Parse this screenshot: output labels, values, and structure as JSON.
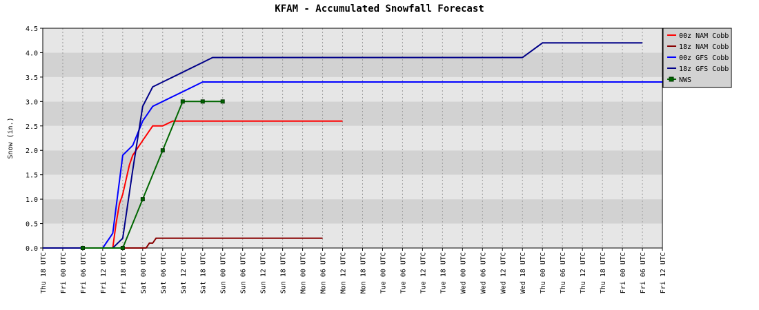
{
  "chart_data": {
    "type": "line",
    "title": "KFAM - Accumulated Snowfall Forecast",
    "xlabel": "",
    "ylabel": "Snow (in.)",
    "ylim": [
      0,
      4.5
    ],
    "yticks": [
      "0.0",
      "0.5",
      "1.0",
      "1.5",
      "2.0",
      "2.5",
      "3.0",
      "3.5",
      "4.0",
      "4.5"
    ],
    "xticks": [
      "Thu 18 UTC",
      "Fri 00 UTC",
      "Fri 06 UTC",
      "Fri 12 UTC",
      "Fri 18 UTC",
      "Sat 00 UTC",
      "Sat 06 UTC",
      "Sat 12 UTC",
      "Sat 18 UTC",
      "Sun 00 UTC",
      "Sun 06 UTC",
      "Sun 12 UTC",
      "Sun 18 UTC",
      "Mon 00 UTC",
      "Mon 06 UTC",
      "Mon 12 UTC",
      "Mon 18 UTC",
      "Tue 00 UTC",
      "Tue 06 UTC",
      "Tue 12 UTC",
      "Tue 18 UTC",
      "Wed 00 UTC",
      "Wed 06 UTC",
      "Wed 12 UTC",
      "Wed 18 UTC",
      "Thu 00 UTC",
      "Thu 06 UTC",
      "Thu 12 UTC",
      "Thu 18 UTC",
      "Fri 00 UTC",
      "Fri 06 UTC",
      "Fri 12 UTC"
    ],
    "grid": true,
    "legend": "top-right",
    "series": [
      {
        "name": "00z NAM Cobb",
        "color": "#ff0000",
        "markers": false,
        "points": [
          [
            "Fri 12 UTC",
            0
          ],
          [
            "Fri 15 UTC",
            0
          ],
          [
            "Fri 16 UTC",
            0.5
          ],
          [
            "Fri 17 UTC",
            0.9
          ],
          [
            "Fri 18 UTC",
            1.1
          ],
          [
            "Fri 19 UTC",
            1.4
          ],
          [
            "Fri 20 UTC",
            1.7
          ],
          [
            "Fri 21 UTC",
            1.9
          ],
          [
            "Sat 00 UTC",
            2.2
          ],
          [
            "Sat 03 UTC",
            2.5
          ],
          [
            "Sat 06 UTC",
            2.5
          ],
          [
            "Sat 09 UTC",
            2.6
          ],
          [
            "Mon 12 UTC",
            2.6
          ]
        ]
      },
      {
        "name": "18z NAM Cobb",
        "color": "#880000",
        "markers": false,
        "points": [
          [
            "Thu 18 UTC",
            0
          ],
          [
            "Sat 01 UTC",
            0
          ],
          [
            "Sat 02 UTC",
            0.1
          ],
          [
            "Sat 03 UTC",
            0.1
          ],
          [
            "Sat 04 UTC",
            0.2
          ],
          [
            "Mon 06 UTC",
            0.2
          ]
        ]
      },
      {
        "name": "00z GFS Cobb",
        "color": "#0000ff",
        "markers": false,
        "points": [
          [
            "Fri 12 UTC",
            0
          ],
          [
            "Fri 15 UTC",
            0.3
          ],
          [
            "Fri 18 UTC",
            1.9
          ],
          [
            "Fri 21 UTC",
            2.1
          ],
          [
            "Sat 00 UTC",
            2.6
          ],
          [
            "Sat 03 UTC",
            2.9
          ],
          [
            "Sat 06 UTC",
            3.0
          ],
          [
            "Sat 09 UTC",
            3.1
          ],
          [
            "Sat 12 UTC",
            3.2
          ],
          [
            "Sat 18 UTC",
            3.4
          ],
          [
            "Fri 12 UTC",
            3.4
          ]
        ]
      },
      {
        "name": "18z GFS Cobb",
        "color": "#000088",
        "markers": false,
        "points": [
          [
            "Thu 18 UTC",
            0
          ],
          [
            "Fri 06 UTC",
            0
          ],
          [
            "Fri 15 UTC",
            0
          ],
          [
            "Fri 18 UTC",
            0.2
          ],
          [
            "Fri 21 UTC",
            1.6
          ],
          [
            "Sat 00 UTC",
            2.9
          ],
          [
            "Sat 03 UTC",
            3.3
          ],
          [
            "Sat 06 UTC",
            3.4
          ],
          [
            "Sat 12 UTC",
            3.6
          ],
          [
            "Sat 18 UTC",
            3.8
          ],
          [
            "Sat 21 UTC",
            3.9
          ],
          [
            "Wed 18 UTC",
            3.9
          ],
          [
            "Thu 00 UTC",
            4.2
          ],
          [
            "Fri 06 UTC",
            4.2
          ]
        ]
      },
      {
        "name": "NWS",
        "color": "#006600",
        "markers": true,
        "points": [
          [
            "Fri 06 UTC",
            0
          ],
          [
            "Fri 18 UTC",
            0
          ],
          [
            "Sat 00 UTC",
            1.0
          ],
          [
            "Sat 06 UTC",
            2.0
          ],
          [
            "Sat 12 UTC",
            3.0
          ],
          [
            "Sat 18 UTC",
            3.0
          ],
          [
            "Sun 00 UTC",
            3.0
          ]
        ]
      }
    ]
  }
}
